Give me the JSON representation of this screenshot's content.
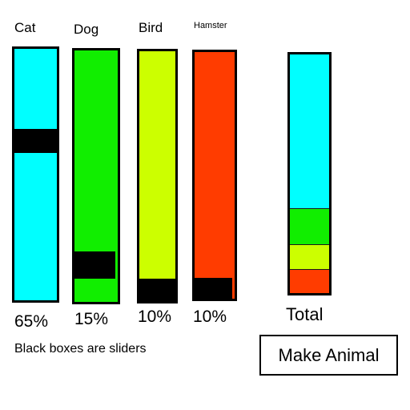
{
  "animals": [
    {
      "name": "Cat",
      "percent_label": "65%",
      "percent": 65,
      "color": "#00ffff"
    },
    {
      "name": "Dog",
      "percent_label": "15%",
      "percent": 15,
      "color": "#11ee00"
    },
    {
      "name": "Bird",
      "percent_label": "10%",
      "percent": 10,
      "color": "#ccff00"
    },
    {
      "name": "Hamster",
      "percent_label": "10%",
      "percent": 10,
      "color": "#ff3c00"
    }
  ],
  "note": "Black boxes are sliders",
  "total_label": "Total",
  "button_label": "Make Animal"
}
